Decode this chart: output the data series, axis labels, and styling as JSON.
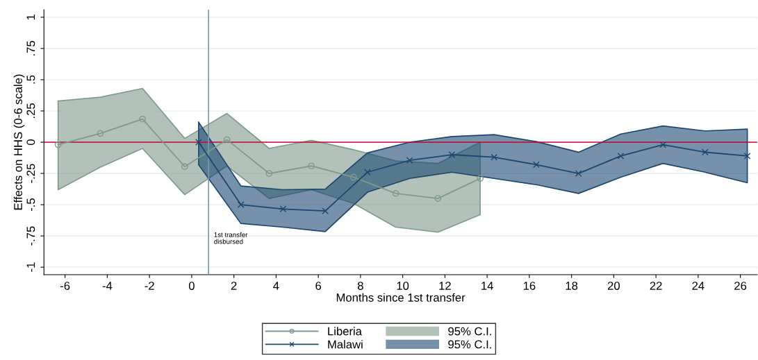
{
  "chart_data": {
    "type": "line",
    "xlabel": "Months since 1st transfer",
    "ylabel": "Effects on HHS (0-6 scale)",
    "xlim": [
      -7,
      26.8
    ],
    "xticks": [
      -6,
      -4,
      -2,
      0,
      2,
      4,
      6,
      8,
      10,
      12,
      14,
      16,
      18,
      20,
      22,
      24,
      26
    ],
    "ylim": [
      -1.06,
      1.06
    ],
    "yticks": [
      {
        "value": -1,
        "label": "-1"
      },
      {
        "value": -0.75,
        "label": "-.75"
      },
      {
        "value": -0.5,
        "label": "-.5"
      },
      {
        "value": -0.25,
        "label": "-.25"
      },
      0,
      {
        "value": 0.25,
        "label": ".25"
      },
      {
        "value": 0.5,
        "label": ".5"
      },
      {
        "value": 0.75,
        "label": ".75"
      },
      1
    ],
    "grid": "y",
    "legend": "bottom",
    "annotations": [
      "95% C.I.",
      "95% C.I."
    ],
    "series": [
      {
        "name": "Liberia",
        "color": "#7f9a8c",
        "marker": "circle",
        "x": [
          -6.33,
          -4.33,
          -2.33,
          -0.33,
          1.67,
          3.67,
          5.67,
          7.67,
          9.67,
          11.67,
          13.67
        ],
        "values": [
          -0.02,
          0.07,
          0.185,
          -0.195,
          0.02,
          -0.25,
          -0.19,
          -0.28,
          -0.41,
          -0.45,
          -0.29
        ],
        "lower": [
          -0.38,
          -0.2,
          -0.05,
          -0.42,
          -0.19,
          -0.45,
          -0.38,
          -0.49,
          -0.68,
          -0.72,
          -0.58
        ],
        "upper": [
          0.33,
          0.36,
          0.43,
          0.03,
          0.23,
          -0.05,
          0.015,
          -0.06,
          -0.15,
          -0.17,
          0.0
        ]
      },
      {
        "name": "Malawi",
        "color": "#1a476f",
        "marker": "cross",
        "x": [
          0.33,
          2.33,
          4.33,
          6.33,
          8.33,
          10.33,
          12.33,
          14.33,
          16.33,
          18.33,
          20.33,
          22.33,
          24.33,
          26.33
        ],
        "values": [
          0.0,
          -0.5,
          -0.535,
          -0.55,
          -0.24,
          -0.145,
          -0.1,
          -0.12,
          -0.18,
          -0.25,
          -0.11,
          -0.02,
          -0.08,
          -0.11
        ],
        "lower": [
          -0.18,
          -0.65,
          -0.68,
          -0.715,
          -0.4,
          -0.29,
          -0.24,
          -0.29,
          -0.34,
          -0.41,
          -0.28,
          -0.17,
          -0.24,
          -0.325
        ],
        "upper": [
          0.16,
          -0.35,
          -0.38,
          -0.375,
          -0.085,
          0.0,
          0.045,
          0.06,
          0.005,
          -0.08,
          0.065,
          0.13,
          0.09,
          0.105
        ]
      }
    ],
    "ref_lines": [
      {
        "axis": "y",
        "value": 0,
        "color": "#c10534"
      },
      {
        "axis": "x",
        "value": 0.8,
        "color": "#7a96b0",
        "label": "1st transfer\ndisbursed"
      }
    ]
  }
}
